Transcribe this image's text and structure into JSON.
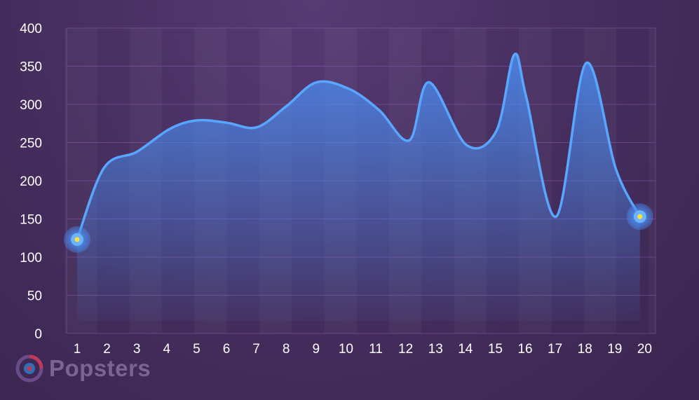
{
  "chart_data": {
    "type": "area",
    "title": "",
    "xlabel": "",
    "ylabel": "",
    "x": [
      1,
      1.9,
      3,
      4.1,
      5,
      6,
      7,
      8,
      9,
      10.1,
      11.1,
      12.1,
      12.75,
      14,
      15,
      15.6,
      16,
      17,
      18,
      19,
      19.8
    ],
    "y": [
      123,
      217,
      238,
      268,
      279,
      276,
      270,
      298,
      329,
      320,
      292,
      253,
      329,
      247,
      265,
      365,
      310,
      153,
      354,
      215,
      153
    ],
    "x_ticks": [
      "1",
      "2",
      "3",
      "4",
      "5",
      "6",
      "7",
      "8",
      "9",
      "10",
      "11",
      "12",
      "13",
      "14",
      "15",
      "16",
      "17",
      "18",
      "19",
      "20"
    ],
    "y_ticks": [
      "0",
      "50",
      "100",
      "150",
      "200",
      "250",
      "300",
      "350",
      "400"
    ],
    "ylim": [
      0,
      400
    ],
    "grid": "horizontal",
    "line_color": "#59a6ff",
    "fill_color": "#4a8cf0",
    "marker_color": "#ffe033",
    "highlighted_points": [
      0,
      20
    ]
  },
  "brand": {
    "name": "Popsters",
    "logo_icon": "popsters-logo-icon"
  }
}
